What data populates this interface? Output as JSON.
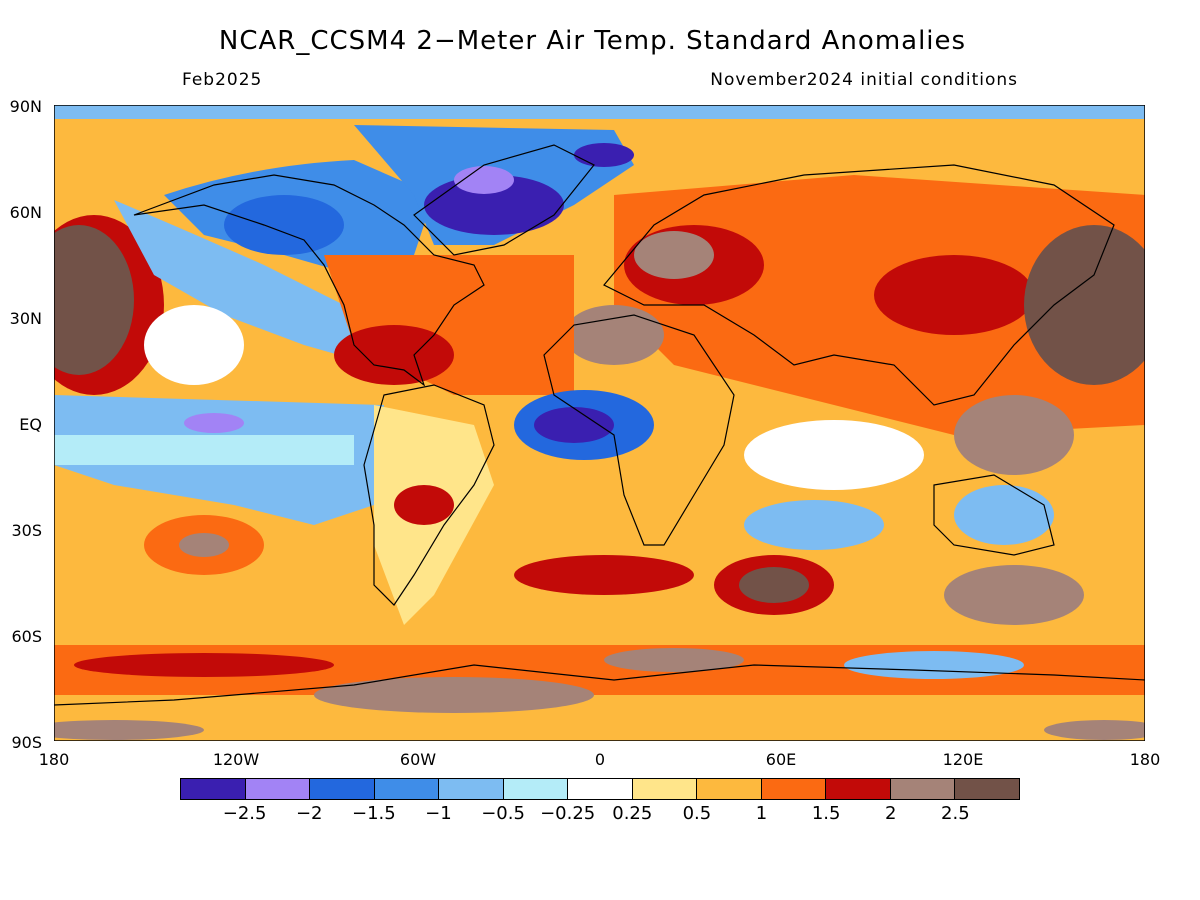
{
  "header": {
    "title": "NCAR_CCSM4 2−Meter Air Temp. Standard Anomalies",
    "valid_period": "Feb2025",
    "init_conditions": "November2024 initial conditions"
  },
  "axes": {
    "lat_labels": [
      "90N",
      "60N",
      "30N",
      "EQ",
      "30S",
      "60S",
      "90S"
    ],
    "lon_labels": [
      "180",
      "120W",
      "60W",
      "0",
      "60E",
      "120E",
      "180"
    ]
  },
  "colorbar": {
    "colors": [
      "#3a1fb0",
      "#a283f5",
      "#2368de",
      "#3f8de8",
      "#7dbcf2",
      "#b4ecf8",
      "#ffffff",
      "#ffe58a",
      "#fdb93e",
      "#fb6a12",
      "#c20a08",
      "#a58378",
      "#725248"
    ],
    "labels": [
      "−2.5",
      "−2",
      "−1.5",
      "−1",
      "−0.5",
      "−0.25",
      "0.25",
      "0.5",
      "1",
      "1.5",
      "2",
      "2.5"
    ]
  }
}
